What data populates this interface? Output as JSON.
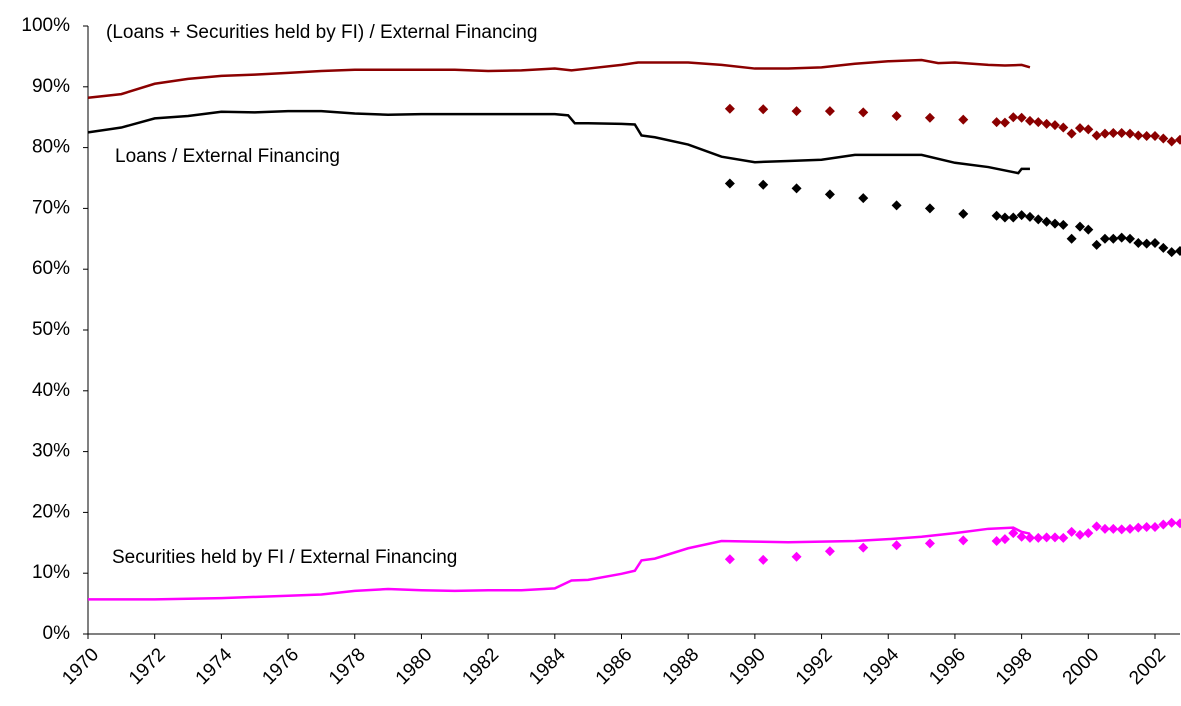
{
  "chart_data": {
    "type": "line",
    "annotations": [
      "(Loans + Securities held by FI) / External Financing",
      "Loans / External Financing",
      "Securities held by FI / External Financing"
    ],
    "xlim": [
      1970,
      2002.75
    ],
    "xticks": [
      1970,
      1972,
      1974,
      1976,
      1978,
      1980,
      1982,
      1984,
      1986,
      1988,
      1990,
      1992,
      1994,
      1996,
      1998,
      2000,
      2002
    ],
    "ylim": [
      0,
      100
    ],
    "yticks": [
      {
        "value": 0,
        "label": "0%"
      },
      {
        "value": 10,
        "label": "10%"
      },
      {
        "value": 20,
        "label": "20%"
      },
      {
        "value": 30,
        "label": "30%"
      },
      {
        "value": 40,
        "label": "40%"
      },
      {
        "value": 50,
        "label": "50%"
      },
      {
        "value": 60,
        "label": "60%"
      },
      {
        "value": 70,
        "label": "70%"
      },
      {
        "value": 80,
        "label": "80%"
      },
      {
        "value": 90,
        "label": "90%"
      },
      {
        "value": 100,
        "label": "100%"
      }
    ],
    "grid": false,
    "series": [
      {
        "type": "line",
        "color": "#8b0000",
        "x": [
          1970,
          1971,
          1972,
          1973,
          1974,
          1975,
          1976,
          1977,
          1978,
          1979,
          1980,
          1981,
          1982,
          1983,
          1984,
          1984.5,
          1985,
          1986,
          1986.5,
          1987,
          1988,
          1989,
          1990,
          1991,
          1992,
          1993,
          1994,
          1995,
          1995.5,
          1996,
          1997,
          1997.5,
          1998,
          1998.25
        ],
        "values": [
          88.2,
          88.8,
          90.5,
          91.3,
          91.8,
          92.0,
          92.3,
          92.6,
          92.8,
          92.8,
          92.8,
          92.8,
          92.6,
          92.7,
          93.0,
          92.7,
          93.0,
          93.6,
          94.0,
          94.0,
          94.0,
          93.6,
          93.0,
          93.0,
          93.2,
          93.8,
          94.2,
          94.4,
          93.9,
          94.0,
          93.6,
          93.5,
          93.6,
          93.2
        ]
      },
      {
        "type": "line",
        "color": "#000000",
        "x": [
          1970,
          1971,
          1972,
          1973,
          1974,
          1975,
          1976,
          1977,
          1978,
          1979,
          1980,
          1981,
          1982,
          1983,
          1984,
          1984.4,
          1984.6,
          1985,
          1986,
          1986.4,
          1986.6,
          1987,
          1988,
          1989,
          1990,
          1991,
          1992,
          1993,
          1994,
          1995,
          1996,
          1997,
          1997.9,
          1998,
          1998.25
        ],
        "values": [
          82.5,
          83.3,
          84.8,
          85.2,
          85.9,
          85.8,
          86.0,
          86.0,
          85.6,
          85.4,
          85.5,
          85.5,
          85.5,
          85.5,
          85.5,
          85.3,
          84.0,
          84.0,
          83.9,
          83.8,
          82.0,
          81.7,
          80.5,
          78.5,
          77.6,
          77.8,
          78.0,
          78.8,
          78.8,
          78.8,
          77.5,
          76.8,
          75.8,
          76.5,
          76.5
        ]
      },
      {
        "type": "line",
        "color": "#ff00ff",
        "x": [
          1970,
          1972,
          1974,
          1976,
          1977,
          1978,
          1979,
          1980,
          1981,
          1982,
          1983,
          1984,
          1984.5,
          1985,
          1986,
          1986.4,
          1986.6,
          1987,
          1988,
          1989,
          1990,
          1991,
          1992,
          1993,
          1994,
          1995,
          1996,
          1997,
          1997.75,
          1998,
          1998.25
        ],
        "values": [
          5.7,
          5.7,
          5.9,
          6.3,
          6.5,
          7.1,
          7.4,
          7.2,
          7.1,
          7.2,
          7.2,
          7.5,
          8.8,
          8.9,
          9.9,
          10.4,
          12.1,
          12.4,
          14.1,
          15.3,
          15.2,
          15.1,
          15.2,
          15.3,
          15.6,
          16.0,
          16.6,
          17.3,
          17.5,
          16.8,
          16.5
        ]
      },
      {
        "type": "scatter",
        "color": "#8b0000",
        "x": [
          1989.25,
          1990.25,
          1991.25,
          1992.25,
          1993.25,
          1994.25,
          1995.25,
          1996.25,
          1997.25,
          1997.5,
          1997.75,
          1998,
          1998.25,
          1998.5,
          1998.75,
          1999,
          1999.25,
          1999.5,
          1999.75,
          2000,
          2000.25,
          2000.5,
          2000.75,
          2001,
          2001.25,
          2001.5,
          2001.75,
          2002,
          2002.25,
          2002.5,
          2002.75
        ],
        "values": [
          86.4,
          86.3,
          86.0,
          86.0,
          85.8,
          85.2,
          84.9,
          84.6,
          84.2,
          84.1,
          85.0,
          84.9,
          84.4,
          84.2,
          83.9,
          83.7,
          83.3,
          82.3,
          83.2,
          83.0,
          82.0,
          82.3,
          82.4,
          82.4,
          82.3,
          82.0,
          81.9,
          81.9,
          81.5,
          81.0,
          81.3
        ]
      },
      {
        "type": "scatter",
        "color": "#000000",
        "x": [
          1989.25,
          1990.25,
          1991.25,
          1992.25,
          1993.25,
          1994.25,
          1995.25,
          1996.25,
          1997.25,
          1997.5,
          1997.75,
          1998,
          1998.25,
          1998.5,
          1998.75,
          1999,
          1999.25,
          1999.5,
          1999.75,
          2000,
          2000.25,
          2000.5,
          2000.75,
          2001,
          2001.25,
          2001.5,
          2001.75,
          2002,
          2002.25,
          2002.5,
          2002.75
        ],
        "values": [
          74.1,
          73.9,
          73.3,
          72.3,
          71.7,
          70.5,
          70.0,
          69.1,
          68.8,
          68.5,
          68.5,
          68.9,
          68.6,
          68.2,
          67.8,
          67.5,
          67.3,
          65.0,
          67.0,
          66.5,
          64.0,
          65.0,
          65.0,
          65.2,
          65.0,
          64.3,
          64.2,
          64.3,
          63.5,
          62.8,
          63.0
        ]
      },
      {
        "type": "scatter",
        "color": "#ff00ff",
        "x": [
          1989.25,
          1990.25,
          1991.25,
          1992.25,
          1993.25,
          1994.25,
          1995.25,
          1996.25,
          1997.25,
          1997.5,
          1997.75,
          1998,
          1998.25,
          1998.5,
          1998.75,
          1999,
          1999.25,
          1999.5,
          1999.75,
          2000,
          2000.25,
          2000.5,
          2000.75,
          2001,
          2001.25,
          2001.5,
          2001.75,
          2002,
          2002.25,
          2002.5,
          2002.75
        ],
        "values": [
          12.3,
          12.2,
          12.7,
          13.6,
          14.2,
          14.6,
          14.9,
          15.4,
          15.3,
          15.6,
          16.6,
          16.0,
          15.8,
          15.8,
          15.9,
          15.9,
          15.8,
          16.8,
          16.3,
          16.6,
          17.7,
          17.3,
          17.3,
          17.2,
          17.3,
          17.5,
          17.6,
          17.6,
          18.0,
          18.3,
          18.2
        ]
      }
    ]
  }
}
